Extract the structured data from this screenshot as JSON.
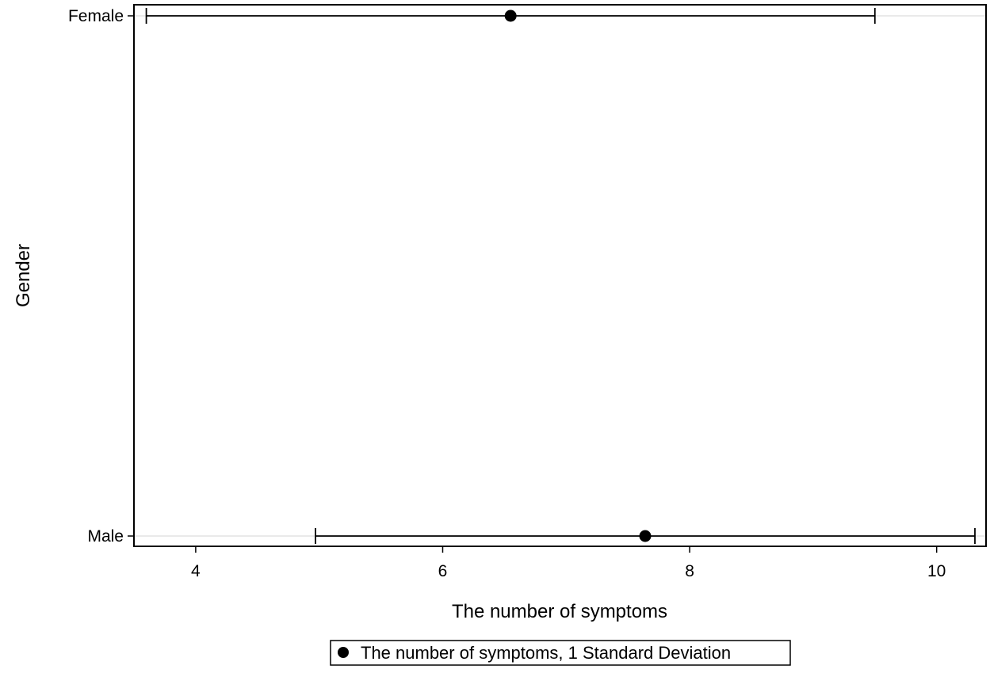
{
  "chart_data": {
    "type": "scatter",
    "title": "",
    "xlabel": "The number of symptoms",
    "ylabel": "Gender",
    "xlim": [
      3.5,
      10.4
    ],
    "x_ticks": [
      "4",
      "6",
      "8",
      "10"
    ],
    "x_tick_values": [
      4,
      6,
      8,
      10
    ],
    "categories": [
      "Female",
      "Male"
    ],
    "series": [
      {
        "name": "The number of symptoms, 1 Standard Deviation",
        "points": [
          {
            "category": "Female",
            "mean": 6.55,
            "lower": 3.6,
            "upper": 9.5
          },
          {
            "category": "Male",
            "mean": 7.64,
            "lower": 4.97,
            "upper": 10.31
          }
        ]
      }
    ],
    "error_bars": "1 Standard Deviation",
    "grid": "horizontal gridlines at categories",
    "legend_position": "bottom-center",
    "colors": {
      "marker": "#000000",
      "gridline": "#eaeaea",
      "frame": "#000000"
    }
  }
}
